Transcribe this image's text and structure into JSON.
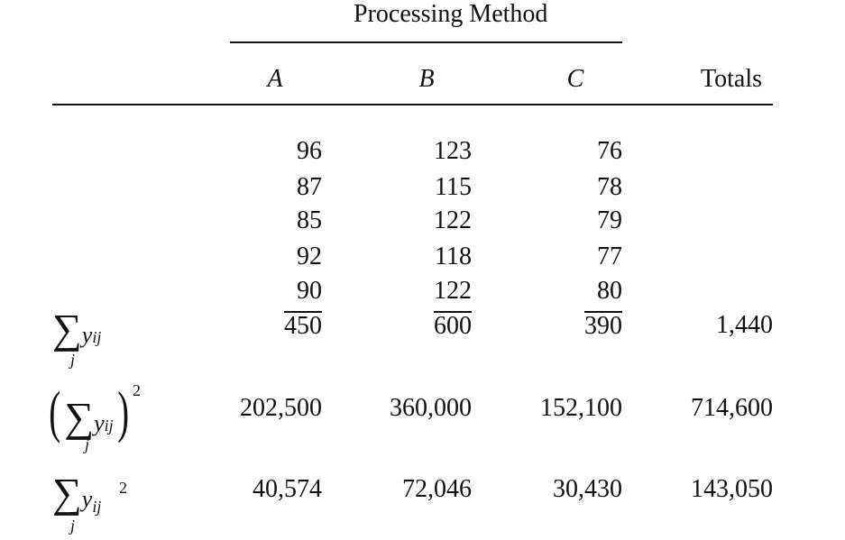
{
  "table": {
    "group_header": "Processing Method",
    "columns": [
      "A",
      "B",
      "C"
    ],
    "totals_label": "Totals",
    "observations": [
      [
        "96",
        "123",
        "76"
      ],
      [
        "87",
        "115",
        "78"
      ],
      [
        "85",
        "122",
        "79"
      ],
      [
        "92",
        "118",
        "77"
      ],
      [
        "90",
        "122",
        "80"
      ]
    ],
    "summary_rows": [
      {
        "label": "Σ_j y_ij",
        "values": [
          "450",
          "600",
          "390"
        ],
        "total": "1,440"
      },
      {
        "label": "(Σ_j y_ij)^2",
        "values": [
          "202,500",
          "360,000",
          "152,100"
        ],
        "total": "714,600"
      },
      {
        "label": "Σ_j y_ij^2",
        "values": [
          "40,574",
          "72,046",
          "30,430"
        ],
        "total": "143,050"
      }
    ]
  }
}
